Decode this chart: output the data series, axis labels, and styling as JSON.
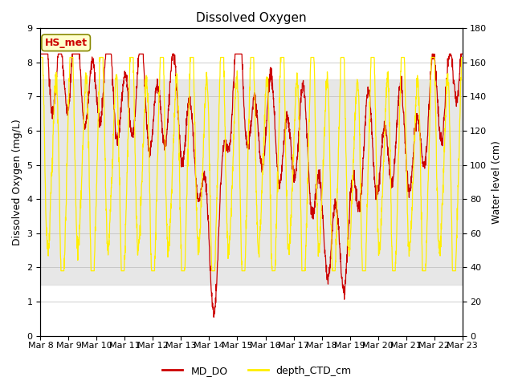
{
  "title": "Dissolved Oxygen",
  "ylabel_left": "Dissolved Oxygen (mg/L)",
  "ylabel_right": "Water level (cm)",
  "ylim_left": [
    0.0,
    9.0
  ],
  "ylim_right": [
    0,
    180
  ],
  "yticks_left": [
    0.0,
    1.0,
    2.0,
    3.0,
    4.0,
    5.0,
    6.0,
    7.0,
    8.0,
    9.0
  ],
  "yticks_right": [
    0,
    20,
    40,
    60,
    80,
    100,
    120,
    140,
    160,
    180
  ],
  "shade_ylim": [
    1.5,
    7.5
  ],
  "annotation_text": "HS_met",
  "legend_labels": [
    "MD_DO",
    "depth_CTD_cm"
  ],
  "line_color_do": "#cc0000",
  "line_color_depth": "#ffee00",
  "shade_color": "#d8d8d8",
  "annotation_bg": "#ffffcc",
  "annotation_edge": "#888800",
  "background_color": "#ffffff",
  "title_fontsize": 11,
  "axis_label_fontsize": 9,
  "tick_fontsize": 8,
  "legend_fontsize": 9,
  "n_points": 2160
}
